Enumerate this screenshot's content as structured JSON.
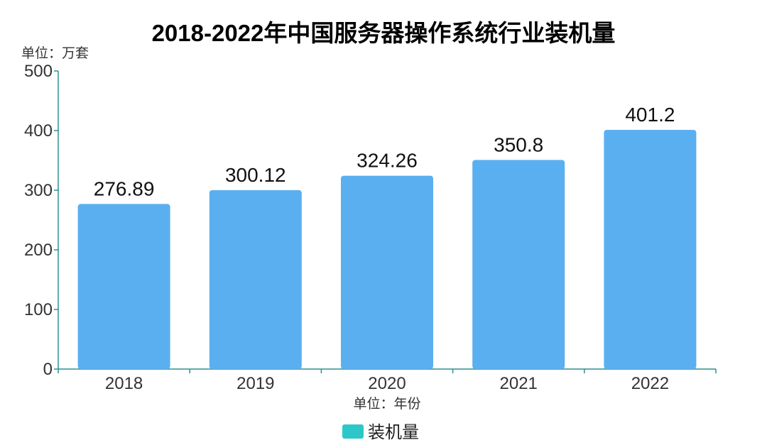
{
  "chart_data": {
    "type": "bar",
    "title": "2018-2022年中国服务器操作系统行业装机量",
    "ylabel": "单位：万套",
    "xlabel": "单位：年份",
    "categories": [
      "2018",
      "2019",
      "2020",
      "2021",
      "2022"
    ],
    "series": [
      {
        "name": "装机量",
        "values": [
          276.89,
          300.12,
          324.26,
          350.8,
          401.2
        ],
        "labels": [
          "276.89",
          "300.12",
          "324.26",
          "350.8",
          "401.2"
        ]
      }
    ],
    "ylim": [
      0,
      500
    ],
    "yticks": [
      "0",
      "100",
      "200",
      "300",
      "400",
      "500"
    ],
    "grid": false,
    "legend_position": "bottom-center",
    "colors": {
      "bar": "#5aaff0",
      "legend_swatch": "#2ec7c9",
      "axis": "#2f8f8f"
    }
  }
}
